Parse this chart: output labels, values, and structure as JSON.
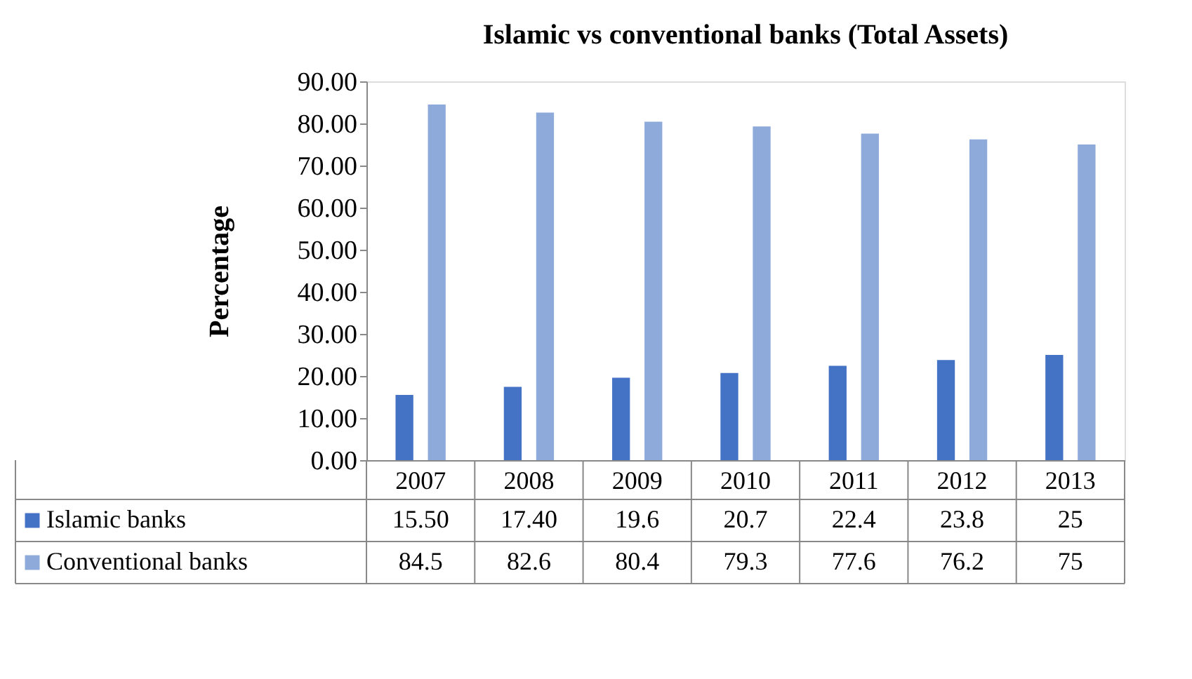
{
  "chart_data": {
    "type": "bar",
    "title": "Islamic vs conventional banks (Total Assets)",
    "ylabel": "Percentage",
    "categories": [
      "2007",
      "2008",
      "2009",
      "2010",
      "2011",
      "2012",
      "2013"
    ],
    "series": [
      {
        "name": "Islamic banks",
        "color": "#4472c4",
        "values": [
          15.5,
          17.4,
          19.6,
          20.7,
          22.4,
          23.8,
          25
        ],
        "value_labels": [
          "15.50",
          "17.40",
          "19.6",
          "20.7",
          "22.4",
          "23.8",
          "25"
        ]
      },
      {
        "name": "Conventional banks",
        "color": "#8eaadb",
        "values": [
          84.5,
          82.6,
          80.4,
          79.3,
          77.6,
          76.2,
          75
        ],
        "value_labels": [
          "84.5",
          "82.6",
          "80.4",
          "79.3",
          "77.6",
          "76.2",
          "75"
        ]
      }
    ],
    "ylim": [
      0,
      90
    ],
    "yticks": [
      {
        "value": 0,
        "label": "0.00"
      },
      {
        "value": 10,
        "label": "10.00"
      },
      {
        "value": 20,
        "label": "20.00"
      },
      {
        "value": 30,
        "label": "30.00"
      },
      {
        "value": 40,
        "label": "40.00"
      },
      {
        "value": 50,
        "label": "50.00"
      },
      {
        "value": 60,
        "label": "60.00"
      },
      {
        "value": 70,
        "label": "70.00"
      },
      {
        "value": 80,
        "label": "80.00"
      },
      {
        "value": 90,
        "label": "90.00"
      }
    ],
    "grid": false,
    "legend": "bottom"
  }
}
